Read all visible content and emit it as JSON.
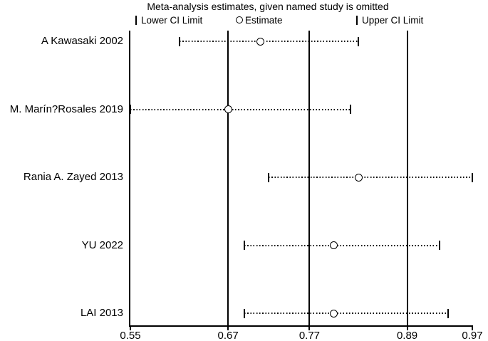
{
  "chart_data": {
    "type": "scatter",
    "subtype": "leave-one-out-forest",
    "title": "Meta-analysis estimates, given named study is omitted",
    "legend": {
      "lower_label": "Lower CI Limit",
      "estimate_label": "Estimate",
      "upper_label": "Upper CI Limit",
      "position": "top"
    },
    "x_axis": {
      "min": 0.55,
      "max": 0.97,
      "ticks": [
        0.55,
        0.67,
        0.77,
        0.89,
        0.97
      ],
      "tick_labels": [
        "0.55",
        "0.67",
        "0.77",
        "0.89",
        "0.97"
      ]
    },
    "reference_lines": [
      0.67,
      0.77,
      0.89
    ],
    "grid": "vertical-reference-lines-only",
    "studies": [
      {
        "label": "A Kawasaki 2002",
        "lower": 0.61,
        "estimate": 0.71,
        "upper": 0.83
      },
      {
        "label": "M. Marín?Rosales 2019",
        "lower": 0.55,
        "estimate": 0.67,
        "upper": 0.82
      },
      {
        "label": "Rania A. Zayed 2013",
        "lower": 0.72,
        "estimate": 0.83,
        "upper": 0.97
      },
      {
        "label": "YU 2022",
        "lower": 0.69,
        "estimate": 0.8,
        "upper": 0.93
      },
      {
        "label": "LAI 2013",
        "lower": 0.69,
        "estimate": 0.8,
        "upper": 0.94
      }
    ],
    "colors": {
      "line": "#000000",
      "marker_fill": "#ffffff",
      "background": "#ffffff",
      "text": "#000000"
    }
  }
}
